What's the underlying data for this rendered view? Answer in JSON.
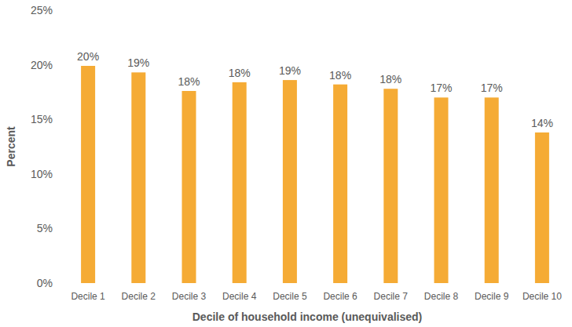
{
  "chart_data": {
    "type": "bar",
    "x_label": "Decile of household income (unequivalised)",
    "y_label": "Percent",
    "categories": [
      "Decile 1",
      "Decile 2",
      "Decile 3",
      "Decile 4",
      "Decile 5",
      "Decile 6",
      "Decile 7",
      "Decile 8",
      "Decile 9",
      "Decile 10"
    ],
    "values": [
      19.9,
      19.3,
      17.6,
      18.4,
      18.6,
      18.2,
      17.8,
      17.0,
      17.0,
      13.8
    ],
    "value_labels": [
      "20%",
      "19%",
      "18%",
      "18%",
      "19%",
      "18%",
      "18%",
      "17%",
      "17%",
      "14%"
    ],
    "color": "#f5ab35",
    "ylim": [
      0,
      25
    ],
    "yticks": [
      {
        "value": 0,
        "label": "0%"
      },
      {
        "value": 5,
        "label": "5%"
      },
      {
        "value": 10,
        "label": "10%"
      },
      {
        "value": 15,
        "label": "15%"
      },
      {
        "value": 20,
        "label": "20%"
      },
      {
        "value": 25,
        "label": "25%"
      }
    ],
    "grid": false,
    "data_labels": true
  }
}
